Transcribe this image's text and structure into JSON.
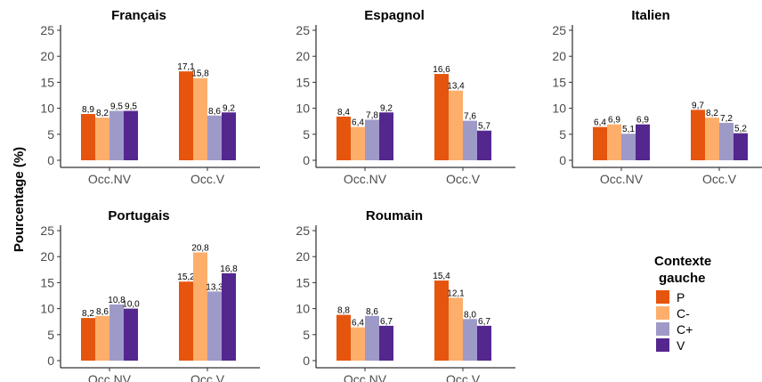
{
  "chart_data": {
    "type": "bar",
    "ylabel": "Pourcentage (%)",
    "ylim": [
      0,
      25
    ],
    "yticks": [
      0,
      5,
      10,
      15,
      20,
      25
    ],
    "grid": false,
    "categories": [
      "Occ.NV",
      "Occ.V"
    ],
    "legend": {
      "title_line1": "Contexte",
      "title_line2": "gauche",
      "placement": "right",
      "items": [
        {
          "name": "P",
          "color": "#E6550D"
        },
        {
          "name": "C-",
          "color": "#FDAE6B"
        },
        {
          "name": "C+",
          "color": "#9E9AC8"
        },
        {
          "name": "V",
          "color": "#54278F"
        }
      ]
    },
    "panels": [
      {
        "title": "Français",
        "values": {
          "P": [
            8.9,
            17.1
          ],
          "C-": [
            8.2,
            15.8
          ],
          "C+": [
            9.5,
            8.6
          ],
          "V": [
            9.5,
            9.2
          ]
        },
        "labels": {
          "P": [
            "8,9",
            "17,1"
          ],
          "C-": [
            "8,2",
            "15,8"
          ],
          "C+": [
            "9,5",
            "8,6"
          ],
          "V": [
            "9,5",
            "9,2"
          ]
        }
      },
      {
        "title": "Espagnol",
        "values": {
          "P": [
            8.4,
            16.6
          ],
          "C-": [
            6.4,
            13.4
          ],
          "C+": [
            7.8,
            7.6
          ],
          "V": [
            9.2,
            5.7
          ]
        },
        "labels": {
          "P": [
            "8,4",
            "16,6"
          ],
          "C-": [
            "6,4",
            "13,4"
          ],
          "C+": [
            "7,8",
            "7,6"
          ],
          "V": [
            "9,2",
            "5,7"
          ]
        }
      },
      {
        "title": "Italien",
        "values": {
          "P": [
            6.4,
            9.7
          ],
          "C-": [
            6.9,
            8.2
          ],
          "C+": [
            5.1,
            7.2
          ],
          "V": [
            6.9,
            5.2
          ]
        },
        "labels": {
          "P": [
            "6,4",
            "9,7"
          ],
          "C-": [
            "6,9",
            "8,2"
          ],
          "C+": [
            "5,1",
            "7,2"
          ],
          "V": [
            "6,9",
            "5,2"
          ]
        }
      },
      {
        "title": "Portugais",
        "values": {
          "P": [
            8.2,
            15.2
          ],
          "C-": [
            8.6,
            20.8
          ],
          "C+": [
            10.8,
            13.3
          ],
          "V": [
            10.0,
            16.8
          ]
        },
        "labels": {
          "P": [
            "8,2",
            "15,2"
          ],
          "C-": [
            "8,6",
            "20,8"
          ],
          "C+": [
            "10,8",
            "13,3"
          ],
          "V": [
            "10,0",
            "16,8"
          ]
        }
      },
      {
        "title": "Roumain",
        "values": {
          "P": [
            8.8,
            15.4
          ],
          "C-": [
            6.4,
            12.1
          ],
          "C+": [
            8.6,
            8.0
          ],
          "V": [
            6.7,
            6.7
          ]
        },
        "labels": {
          "P": [
            "8,8",
            "15,4"
          ],
          "C-": [
            "6,4",
            "12,1"
          ],
          "C+": [
            "8,6",
            "8,0"
          ],
          "V": [
            "6,7",
            "6,7"
          ]
        }
      }
    ]
  }
}
